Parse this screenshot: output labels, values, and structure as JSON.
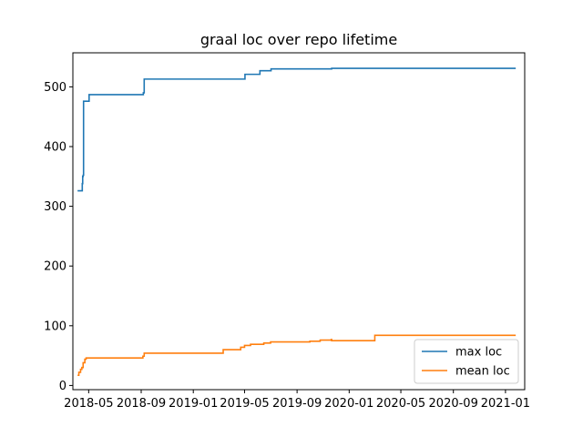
{
  "chart_data": {
    "type": "line",
    "title": "graal loc over repo lifetime",
    "xlabel": "",
    "ylabel": "",
    "x_ticks": [
      "2018-05",
      "2018-09",
      "2019-01",
      "2019-05",
      "2019-09",
      "2020-01",
      "2020-05",
      "2020-09",
      "2021-01"
    ],
    "y_ticks": [
      "0",
      "100",
      "200",
      "300",
      "400",
      "500"
    ],
    "xlim": [
      "2018-03-25",
      "2021-02-15"
    ],
    "ylim": [
      -7,
      557
    ],
    "grid": false,
    "legend_position": "lower-right",
    "line_style": "step-post",
    "series": [
      {
        "name": "max loc",
        "color": "#1f77b4",
        "points": [
          [
            "2018-04-05",
            326
          ],
          [
            "2018-04-15",
            326
          ],
          [
            "2018-04-16",
            338
          ],
          [
            "2018-04-17",
            350
          ],
          [
            "2018-04-18",
            352
          ],
          [
            "2018-04-19",
            476
          ],
          [
            "2018-05-01",
            476
          ],
          [
            "2018-05-02",
            487
          ],
          [
            "2018-09-05",
            487
          ],
          [
            "2018-09-06",
            490
          ],
          [
            "2018-09-08",
            513
          ],
          [
            "2019-05-01",
            513
          ],
          [
            "2019-05-02",
            521
          ],
          [
            "2019-06-05",
            521
          ],
          [
            "2019-06-06",
            527
          ],
          [
            "2019-07-01",
            527
          ],
          [
            "2019-07-02",
            530
          ],
          [
            "2019-11-20",
            530
          ],
          [
            "2019-11-21",
            531
          ],
          [
            "2021-01-25",
            531
          ]
        ]
      },
      {
        "name": "mean loc",
        "color": "#ff7f0e",
        "points": [
          [
            "2018-04-05",
            17
          ],
          [
            "2018-04-08",
            22
          ],
          [
            "2018-04-12",
            27
          ],
          [
            "2018-04-15",
            30
          ],
          [
            "2018-04-18",
            38
          ],
          [
            "2018-04-22",
            44
          ],
          [
            "2018-04-25",
            46
          ],
          [
            "2018-09-01",
            46
          ],
          [
            "2018-09-05",
            49
          ],
          [
            "2018-09-08",
            54
          ],
          [
            "2019-03-10",
            54
          ],
          [
            "2019-03-12",
            60
          ],
          [
            "2019-04-15",
            60
          ],
          [
            "2019-04-22",
            64
          ],
          [
            "2019-05-01",
            67
          ],
          [
            "2019-05-15",
            69
          ],
          [
            "2019-06-15",
            71
          ],
          [
            "2019-07-01",
            73
          ],
          [
            "2019-10-01",
            74
          ],
          [
            "2019-10-25",
            76
          ],
          [
            "2019-11-20",
            77
          ],
          [
            "2019-11-21",
            75
          ],
          [
            "2020-02-29",
            75
          ],
          [
            "2020-03-01",
            84
          ],
          [
            "2021-01-25",
            84
          ]
        ]
      }
    ]
  }
}
